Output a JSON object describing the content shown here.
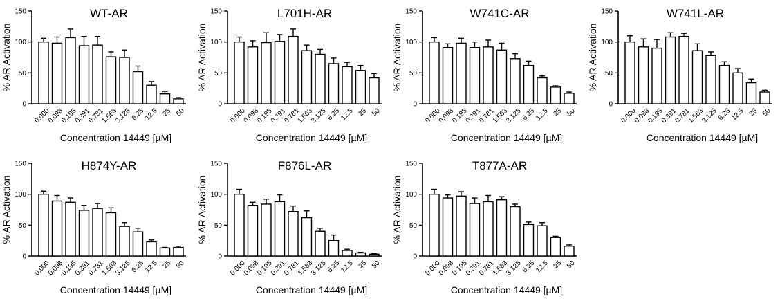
{
  "chart_data": [
    {
      "type": "bar",
      "title": "WT-AR",
      "xlabel": "Concentration 14449 [µM]",
      "ylabel": "% AR Activation",
      "categories": [
        "0.000",
        "0.098",
        "0.195",
        "0.391",
        "0.781",
        "1.563",
        "3.125",
        "6.25",
        "12.5",
        "25",
        "50"
      ],
      "yticks": [
        "0",
        "50",
        "100",
        "150"
      ],
      "ylim": [
        0,
        150
      ],
      "values": [
        100,
        98,
        107,
        94,
        95,
        76,
        75,
        52,
        30,
        16,
        8
      ],
      "errors": [
        6,
        10,
        14,
        15,
        14,
        8,
        12,
        9,
        6,
        4,
        2
      ]
    },
    {
      "type": "bar",
      "title": "L701H-AR",
      "xlabel": "Concentration 14449 [µM]",
      "ylabel": "% AR Activation",
      "categories": [
        "0.000",
        "0.098",
        "0.195",
        "0.391",
        "0.781",
        "1.563",
        "3.125",
        "6.25",
        "12.5",
        "25",
        "50"
      ],
      "yticks": [
        "0",
        "50",
        "100",
        "150"
      ],
      "ylim": [
        0,
        150
      ],
      "values": [
        100,
        92,
        99,
        101,
        109,
        86,
        80,
        65,
        60,
        54,
        42
      ],
      "errors": [
        8,
        10,
        16,
        11,
        12,
        9,
        8,
        9,
        7,
        8,
        7
      ]
    },
    {
      "type": "bar",
      "title": "W741C-AR",
      "xlabel": "Concentration 14449 [µM]",
      "ylabel": "% AR Activation",
      "categories": [
        "0.000",
        "0.098",
        "0.195",
        "0.391",
        "0.781",
        "1.563",
        "3.125",
        "6.25",
        "12.5",
        "25",
        "50"
      ],
      "yticks": [
        "0",
        "50",
        "100",
        "150"
      ],
      "ylim": [
        0,
        150
      ],
      "values": [
        100,
        91,
        98,
        91,
        92,
        87,
        73,
        62,
        42,
        27,
        17
      ],
      "errors": [
        7,
        6,
        8,
        9,
        11,
        11,
        8,
        7,
        3,
        2,
        2
      ]
    },
    {
      "type": "bar",
      "title": "W741L-AR",
      "xlabel": "Concentration 14449 [µM]",
      "ylabel": "% AR Activation",
      "categories": [
        "0.000",
        "0.098",
        "0.195",
        "0.391",
        "0.781",
        "1.563",
        "3.125",
        "6.25",
        "12.5",
        "25",
        "50"
      ],
      "yticks": [
        "0",
        "50",
        "100",
        "150"
      ],
      "ylim": [
        0,
        150
      ],
      "values": [
        100,
        92,
        90,
        108,
        109,
        86,
        78,
        62,
        50,
        34,
        19
      ],
      "errors": [
        10,
        13,
        14,
        7,
        5,
        11,
        6,
        6,
        7,
        6,
        3
      ]
    },
    {
      "type": "bar",
      "title": "H874Y-AR",
      "xlabel": "Concentration 14449 [µM]",
      "ylabel": "% AR Activation",
      "categories": [
        "0.000",
        "0.098",
        "0.195",
        "0.391",
        "0.781",
        "1.563",
        "3.125",
        "6.25",
        "12.5",
        "25",
        "50"
      ],
      "yticks": [
        "0",
        "50",
        "100",
        "150"
      ],
      "ylim": [
        0,
        150
      ],
      "values": [
        100,
        89,
        87,
        74,
        77,
        70,
        48,
        39,
        23,
        13,
        14
      ],
      "errors": [
        5,
        9,
        7,
        8,
        8,
        8,
        6,
        6,
        3,
        1,
        2
      ]
    },
    {
      "type": "bar",
      "title": "F876L-AR",
      "xlabel": "Concentration 14449 [µM]",
      "ylabel": "% AR Activation",
      "categories": [
        "0.000",
        "0.098",
        "0.195",
        "0.391",
        "0.781",
        "1.563",
        "3.125",
        "6.25",
        "12.5",
        "25",
        "50"
      ],
      "yticks": [
        "0",
        "50",
        "100",
        "150"
      ],
      "ylim": [
        0,
        150
      ],
      "values": [
        100,
        82,
        84,
        88,
        72,
        62,
        40,
        25,
        9,
        5,
        3
      ],
      "errors": [
        8,
        5,
        8,
        11,
        9,
        11,
        5,
        9,
        2,
        1,
        1
      ]
    },
    {
      "type": "bar",
      "title": "T877A-AR",
      "xlabel": "Concentration 14449 [µM]",
      "ylabel": "% AR Activation",
      "categories": [
        "0.000",
        "0.098",
        "0.195",
        "0.391",
        "0.781",
        "1.563",
        "3.125",
        "6.25",
        "12.5",
        "25",
        "50"
      ],
      "yticks": [
        "0",
        "50",
        "100",
        "150"
      ],
      "ylim": [
        0,
        150
      ],
      "values": [
        100,
        94,
        97,
        85,
        88,
        91,
        80,
        51,
        49,
        30,
        16
      ],
      "errors": [
        8,
        5,
        7,
        9,
        10,
        5,
        4,
        4,
        5,
        2,
        2
      ]
    }
  ]
}
